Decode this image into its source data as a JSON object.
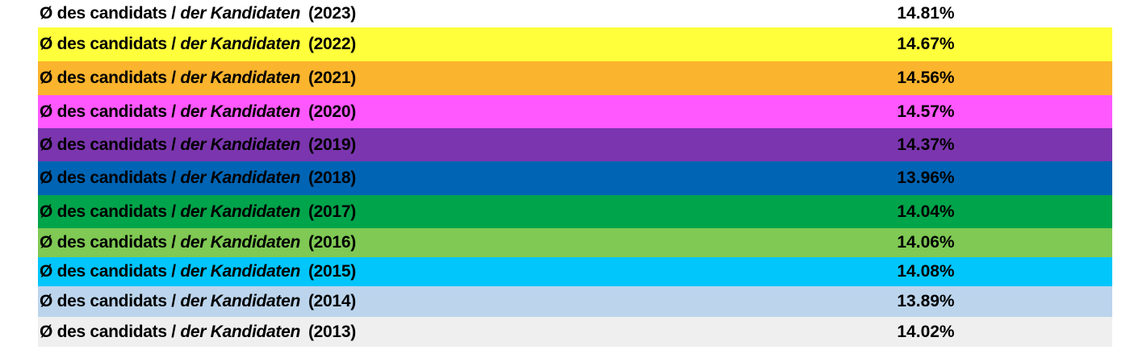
{
  "rows": [
    {
      "prefix": "Ø des candidats / ",
      "italic": "der Kandidaten",
      "year": "(2023)",
      "value": "14.81%",
      "color": "#ffffff"
    },
    {
      "prefix": "Ø des candidats / ",
      "italic": "der Kandidaten",
      "year": "(2022)",
      "value": "14.67%",
      "color": "#ffff3c"
    },
    {
      "prefix": "Ø des candidats / ",
      "italic": "der Kandidaten",
      "year": "(2021)",
      "value": "14.56%",
      "color": "#fbb42d"
    },
    {
      "prefix": "Ø des candidats / ",
      "italic": "der Kandidaten",
      "year": "(2020)",
      "value": "14.57%",
      "color": "#ff58ff"
    },
    {
      "prefix": "Ø des candidats / ",
      "italic": "der Kandidaten",
      "year": "(2019)",
      "value": "14.37%",
      "color": "#7b35ae"
    },
    {
      "prefix": "Ø des candidats / ",
      "italic": "der Kandidaten",
      "year": "(2018)",
      "value": "13.96%",
      "color": "#0064b4"
    },
    {
      "prefix": "Ø des candidats / ",
      "italic": "der Kandidaten",
      "year": "(2017)",
      "value": "14.04%",
      "color": "#00a44a"
    },
    {
      "prefix": "Ø des candidats / ",
      "italic": "der Kandidaten",
      "year": "(2016)",
      "value": "14.06%",
      "color": "#7fc954"
    },
    {
      "prefix": "Ø des candidats / ",
      "italic": "der Kandidaten",
      "year": "(2015)",
      "value": "14.08%",
      "color": "#00c6fc"
    },
    {
      "prefix": "Ø des candidats / ",
      "italic": "der Kandidaten",
      "year": "(2014)",
      "value": "13.89%",
      "color": "#bcd5ed"
    },
    {
      "prefix": "Ø des candidats / ",
      "italic": "der Kandidaten",
      "year": "(2013)",
      "value": "14.02%",
      "color": "#efefef"
    }
  ]
}
